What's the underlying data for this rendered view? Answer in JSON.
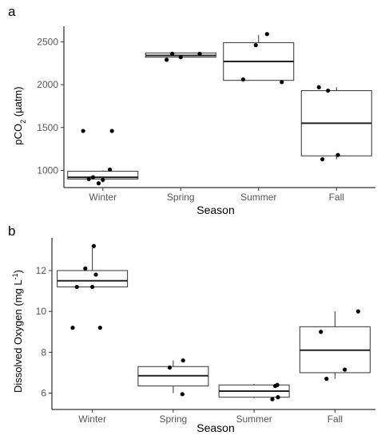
{
  "chart_data": [
    {
      "type": "box",
      "panel_label": "a",
      "xlabel": "Season",
      "ylabel_main": "pCO",
      "ylabel_sub": "2",
      "ylabel_unit": " (µatm)",
      "categories": [
        "Winter",
        "Spring",
        "Summer",
        "Fall"
      ],
      "ylim": [
        800,
        2680
      ],
      "yticks": [
        1000,
        1500,
        2000,
        2500
      ],
      "ytick_labels": [
        "1000",
        "1500",
        "2000",
        "2500"
      ],
      "grid": false,
      "boxes": [
        {
          "category": "Winter",
          "q1": 900,
          "median": 920,
          "q3": 990,
          "whisker_low": 860,
          "whisker_high": 1000
        },
        {
          "category": "Spring",
          "q1": 2320,
          "median": 2340,
          "q3": 2370,
          "whisker_low": 2300,
          "whisker_high": 2370
        },
        {
          "category": "Summer",
          "q1": 2050,
          "median": 2270,
          "q3": 2490,
          "whisker_low": 2050,
          "whisker_high": 2580
        },
        {
          "category": "Fall",
          "q1": 1170,
          "median": 1550,
          "q3": 1930,
          "whisker_low": 1130,
          "whisker_high": 1970
        }
      ],
      "points": [
        {
          "category": "Winter",
          "jitter": -0.28,
          "value": 1460
        },
        {
          "category": "Winter",
          "jitter": -0.2,
          "value": 900
        },
        {
          "category": "Winter",
          "jitter": -0.14,
          "value": 920
        },
        {
          "category": "Winter",
          "jitter": -0.06,
          "value": 850
        },
        {
          "category": "Winter",
          "jitter": 0.0,
          "value": 890
        },
        {
          "category": "Winter",
          "jitter": 0.1,
          "value": 1010
        },
        {
          "category": "Winter",
          "jitter": 0.13,
          "value": 1460
        },
        {
          "category": "Spring",
          "jitter": -0.2,
          "value": 2290
        },
        {
          "category": "Spring",
          "jitter": -0.12,
          "value": 2360
        },
        {
          "category": "Spring",
          "jitter": 0.0,
          "value": 2320
        },
        {
          "category": "Spring",
          "jitter": 0.27,
          "value": 2360
        },
        {
          "category": "Summer",
          "jitter": -0.22,
          "value": 2060
        },
        {
          "category": "Summer",
          "jitter": -0.04,
          "value": 2460
        },
        {
          "category": "Summer",
          "jitter": 0.12,
          "value": 2590
        },
        {
          "category": "Summer",
          "jitter": 0.33,
          "value": 2030
        },
        {
          "category": "Fall",
          "jitter": -0.25,
          "value": 1970
        },
        {
          "category": "Fall",
          "jitter": -0.2,
          "value": 1130
        },
        {
          "category": "Fall",
          "jitter": -0.12,
          "value": 1930
        },
        {
          "category": "Fall",
          "jitter": 0.02,
          "value": 1180
        }
      ]
    },
    {
      "type": "box",
      "panel_label": "b",
      "xlabel": "Season",
      "ylabel_main": "Dissolved Oxygen (mg L",
      "ylabel_sup": "-1",
      "ylabel_end": ")",
      "categories": [
        "Winter",
        "Spring",
        "Summer",
        "Fall"
      ],
      "ylim": [
        5.2,
        13.6
      ],
      "yticks": [
        6,
        8,
        10,
        12
      ],
      "ytick_labels": [
        "6",
        "8",
        "10",
        "12"
      ],
      "grid": false,
      "boxes": [
        {
          "category": "Winter",
          "q1": 11.2,
          "median": 11.5,
          "q3": 12.0,
          "whisker_low": 11.2,
          "whisker_high": 13.1
        },
        {
          "category": "Spring",
          "q1": 6.35,
          "median": 6.85,
          "q3": 7.3,
          "whisker_low": 6.0,
          "whisker_high": 7.6
        },
        {
          "category": "Summer",
          "q1": 5.8,
          "median": 6.1,
          "q3": 6.4,
          "whisker_low": 5.75,
          "whisker_high": 6.45
        },
        {
          "category": "Fall",
          "q1": 7.0,
          "median": 8.1,
          "q3": 9.25,
          "whisker_low": 6.7,
          "whisker_high": 10.0
        }
      ],
      "points": [
        {
          "category": "Winter",
          "jitter": -0.28,
          "value": 9.2
        },
        {
          "category": "Winter",
          "jitter": -0.22,
          "value": 11.2
        },
        {
          "category": "Winter",
          "jitter": -0.1,
          "value": 12.1
        },
        {
          "category": "Winter",
          "jitter": 0.0,
          "value": 11.2
        },
        {
          "category": "Winter",
          "jitter": 0.02,
          "value": 13.2
        },
        {
          "category": "Winter",
          "jitter": 0.05,
          "value": 11.8
        },
        {
          "category": "Winter",
          "jitter": 0.11,
          "value": 9.2
        },
        {
          "category": "Spring",
          "jitter": -0.05,
          "value": 7.25
        },
        {
          "category": "Spring",
          "jitter": 0.13,
          "value": 5.95
        },
        {
          "category": "Spring",
          "jitter": 0.14,
          "value": 7.6
        },
        {
          "category": "Summer",
          "jitter": 0.26,
          "value": 5.7
        },
        {
          "category": "Summer",
          "jitter": 0.3,
          "value": 6.35
        },
        {
          "category": "Summer",
          "jitter": 0.33,
          "value": 6.4
        },
        {
          "category": "Summer",
          "jitter": 0.34,
          "value": 5.8
        },
        {
          "category": "Fall",
          "jitter": -0.2,
          "value": 9.0
        },
        {
          "category": "Fall",
          "jitter": -0.12,
          "value": 6.7
        },
        {
          "category": "Fall",
          "jitter": 0.14,
          "value": 7.15
        },
        {
          "category": "Fall",
          "jitter": 0.33,
          "value": 10.0
        }
      ]
    }
  ]
}
